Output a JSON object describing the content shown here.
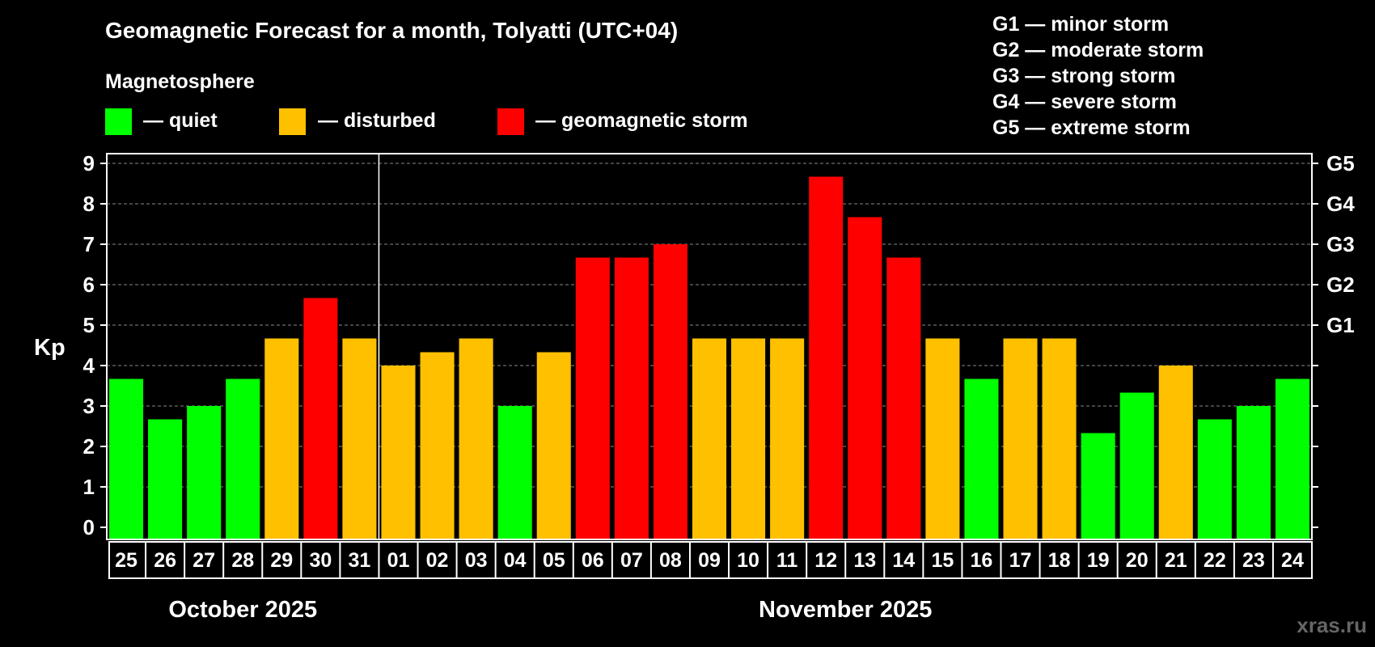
{
  "chart_data": {
    "type": "bar",
    "title": "Geomagnetic Forecast for a month, Tolyatti (UTC+04)",
    "legend_heading": "Magnetosphere",
    "legend": [
      {
        "label": "— quiet",
        "color": "#00ff00"
      },
      {
        "label": "— disturbed",
        "color": "#ffc000"
      },
      {
        "label": "— geomagnetic storm",
        "color": "#ff0000"
      }
    ],
    "storm_scale": [
      "G1 — minor storm",
      "G2 — moderate storm",
      "G3 — strong storm",
      "G4 — severe storm",
      "G5 — extreme storm"
    ],
    "ylabel": "Kp",
    "ylim": [
      0,
      9
    ],
    "yticks": [
      "0",
      "1",
      "2",
      "3",
      "4",
      "5",
      "6",
      "7",
      "8",
      "9"
    ],
    "right_ticks": [
      {
        "value": 5,
        "label": "G1"
      },
      {
        "value": 6,
        "label": "G2"
      },
      {
        "value": 7,
        "label": "G3"
      },
      {
        "value": 8,
        "label": "G4"
      },
      {
        "value": 9,
        "label": "G5"
      }
    ],
    "categories": [
      "25",
      "26",
      "27",
      "28",
      "29",
      "30",
      "31",
      "01",
      "02",
      "03",
      "04",
      "05",
      "06",
      "07",
      "08",
      "09",
      "10",
      "11",
      "12",
      "13",
      "14",
      "15",
      "16",
      "17",
      "18",
      "19",
      "20",
      "21",
      "22",
      "23",
      "24"
    ],
    "values": [
      3.67,
      2.67,
      3.0,
      3.67,
      4.67,
      5.67,
      4.67,
      4.0,
      4.33,
      4.67,
      3.0,
      4.33,
      6.67,
      6.67,
      7.0,
      4.67,
      4.67,
      4.67,
      8.67,
      7.67,
      6.67,
      4.67,
      3.67,
      4.67,
      4.67,
      2.33,
      3.33,
      4.0,
      2.67,
      3.0,
      3.67
    ],
    "levels": [
      "quiet",
      "quiet",
      "quiet",
      "quiet",
      "disturbed",
      "storm",
      "disturbed",
      "disturbed",
      "disturbed",
      "disturbed",
      "quiet",
      "disturbed",
      "storm",
      "storm",
      "storm",
      "disturbed",
      "disturbed",
      "disturbed",
      "storm",
      "storm",
      "storm",
      "disturbed",
      "quiet",
      "disturbed",
      "disturbed",
      "quiet",
      "quiet",
      "disturbed",
      "quiet",
      "quiet",
      "quiet"
    ],
    "level_colors": {
      "quiet": "#00ff00",
      "disturbed": "#ffc000",
      "storm": "#ff0000"
    },
    "months": [
      {
        "label": "October 2025",
        "start": 0,
        "end": 6
      },
      {
        "label": "November 2025",
        "start": 7,
        "end": 30
      }
    ],
    "grid": true
  },
  "watermark": "xras.ru"
}
